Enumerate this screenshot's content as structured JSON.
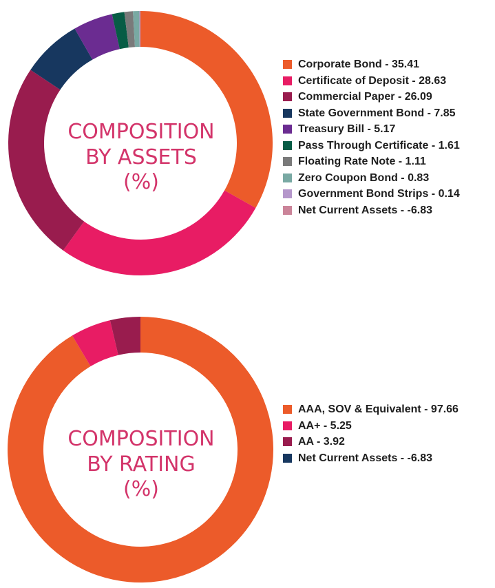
{
  "chart_data": [
    {
      "type": "pie",
      "variant": "donut",
      "center_label_lines": [
        "COMPOSITION",
        "BY ASSETS",
        "(%)"
      ],
      "legend_placement": "right",
      "slices": [
        {
          "label": "Corporate Bond",
          "value": 35.41,
          "color": "#ec5b2a"
        },
        {
          "label": "Certificate of Deposit",
          "value": 28.63,
          "color": "#e81c64"
        },
        {
          "label": "Commercial Paper",
          "value": 26.09,
          "color": "#991c4e"
        },
        {
          "label": "State Government Bond",
          "value": 7.85,
          "color": "#17375f"
        },
        {
          "label": "Treasury Bill",
          "value": 5.17,
          "color": "#6b2c91"
        },
        {
          "label": "Pass Through Certificate",
          "value": 1.61,
          "color": "#075c45"
        },
        {
          "label": "Floating Rate Note",
          "value": 1.11,
          "color": "#7a7a7a"
        },
        {
          "label": "Zero Coupon Bond",
          "value": 0.83,
          "color": "#79a9a3"
        },
        {
          "label": "Government Bond Strips",
          "value": 0.14,
          "color": "#b597cb"
        },
        {
          "label": "Net Current Assets",
          "value": -6.83,
          "color": "#cb8499"
        }
      ]
    },
    {
      "type": "pie",
      "variant": "donut",
      "center_label_lines": [
        "COMPOSITION",
        "BY RATING",
        "(%)"
      ],
      "legend_placement": "right",
      "slices": [
        {
          "label": "AAA, SOV & Equivalent",
          "value": 97.66,
          "color": "#ec5b2a"
        },
        {
          "label": "AA+",
          "value": 5.25,
          "color": "#e81c64"
        },
        {
          "label": "AA",
          "value": 3.92,
          "color": "#991c4e"
        },
        {
          "label": "Net Current Assets",
          "value": -6.83,
          "color": "#17375f"
        }
      ]
    }
  ]
}
